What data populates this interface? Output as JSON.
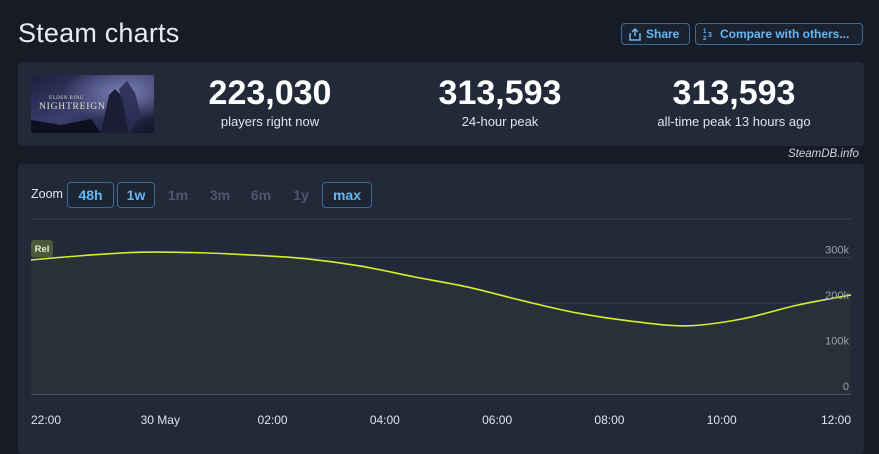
{
  "header": {
    "title": "Steam charts",
    "share_label": "Share",
    "compare_label": "Compare with others..."
  },
  "game": {
    "logo_small": "ELDEN RING",
    "logo_main": "NIGHTREIGN"
  },
  "stats": [
    {
      "value": "223,030",
      "label": "players right now"
    },
    {
      "value": "313,593",
      "label": "24-hour peak"
    },
    {
      "value": "313,593",
      "label": "all-time peak 13 hours ago"
    }
  ],
  "credit": "SteamDB.info",
  "zoom": {
    "label": "Zoom",
    "options": [
      {
        "label": "48h",
        "state": "active"
      },
      {
        "label": "1w",
        "state": "active"
      },
      {
        "label": "1m",
        "state": "disabled"
      },
      {
        "label": "3m",
        "state": "disabled"
      },
      {
        "label": "6m",
        "state": "disabled"
      },
      {
        "label": "1y",
        "state": "disabled"
      },
      {
        "label": "max",
        "state": "active"
      }
    ]
  },
  "colors": {
    "line": "#d4f02a",
    "accent": "#67b7f5",
    "badge_bg": "#4a5a3a"
  },
  "chart_data": {
    "type": "area",
    "series": [
      {
        "x": [
          "21:00",
          "22:00",
          "23:00",
          "30 May 00:00",
          "01:00",
          "02:00",
          "03:00",
          "04:00",
          "05:00",
          "06:00",
          "07:00",
          "08:00",
          "09:00",
          "10:00",
          "11:00",
          "12:00"
        ],
        "values": [
          295000,
          305000,
          312000,
          311000,
          306000,
          298000,
          282000,
          258000,
          235000,
          205000,
          178000,
          160000,
          150000,
          165000,
          195000,
          218000
        ]
      }
    ],
    "x_tick_labels": [
      "22:00",
      "30 May",
      "02:00",
      "04:00",
      "06:00",
      "08:00",
      "10:00",
      "12:00"
    ],
    "y_tick_labels": [
      "0",
      "100k",
      "200k",
      "300k"
    ],
    "y_tick_values": [
      0,
      100000,
      200000,
      300000
    ],
    "ylim": [
      0,
      385000
    ],
    "badge": "Rel",
    "grid": true
  }
}
